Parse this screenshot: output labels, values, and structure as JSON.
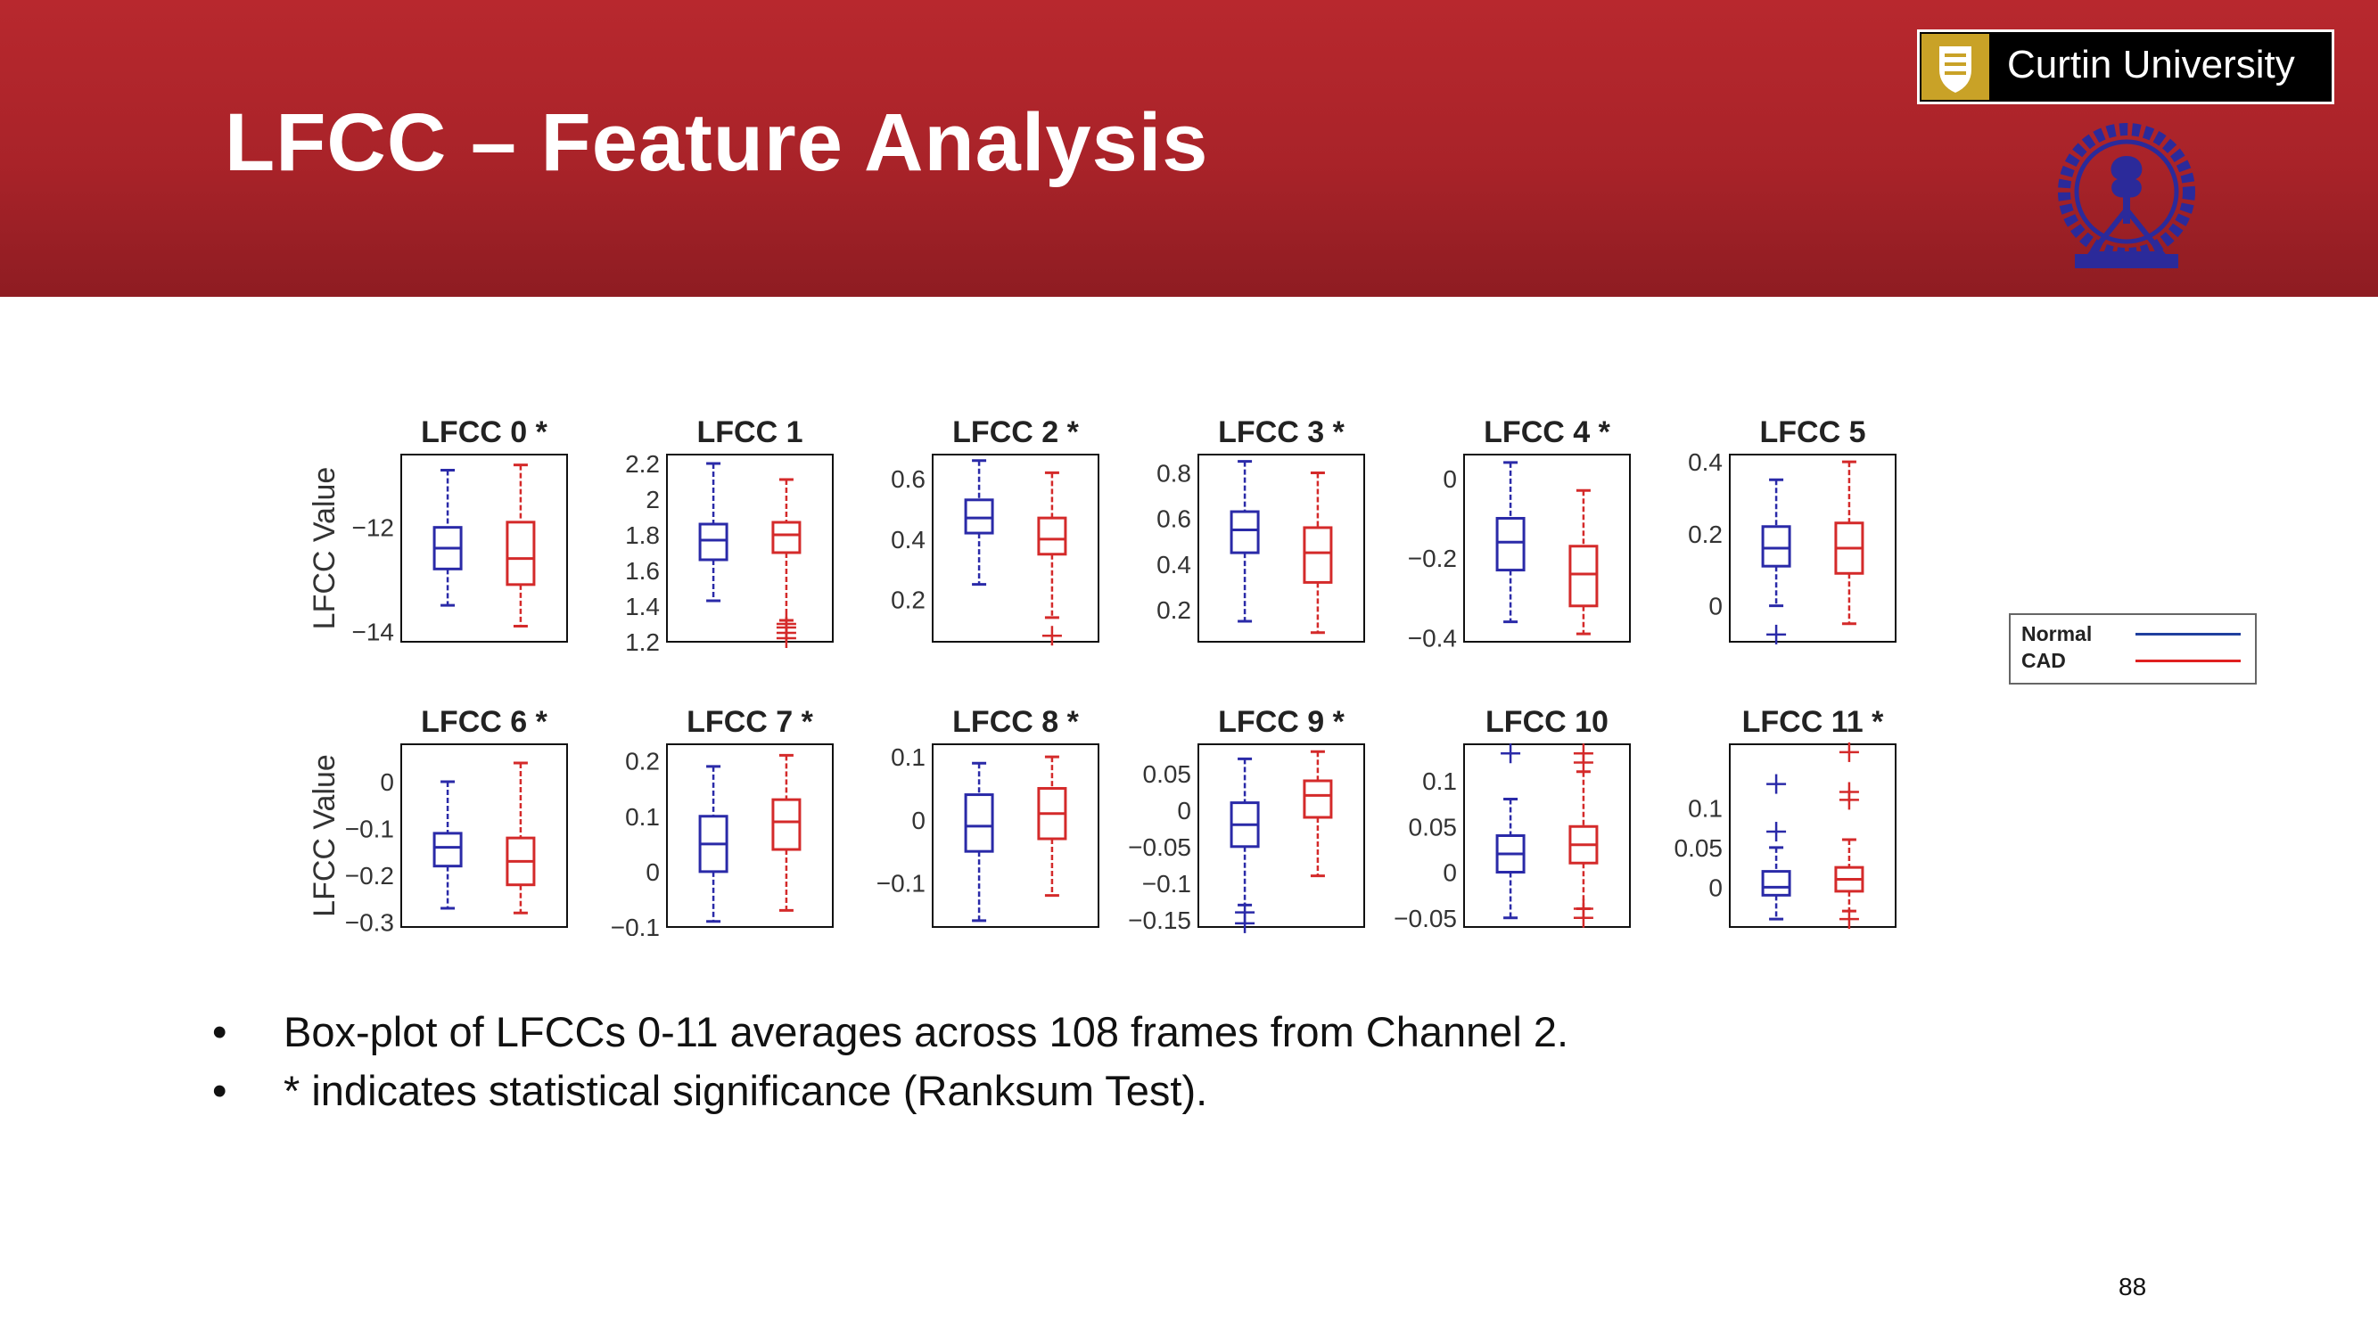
{
  "slide": {
    "title": "LFCC – Feature Analysis",
    "logo_text": "Curtin University",
    "page_number": "88",
    "bullets": [
      "Box-plot of LFCCs 0-11 averages across 108 frames from Channel 2.",
      "* indicates statistical significance (Ranksum Test)."
    ]
  },
  "legend": {
    "items": [
      {
        "label": "Normal",
        "color": "#1f3f9e"
      },
      {
        "label": "CAD",
        "color": "#e02020"
      }
    ]
  },
  "chart_data": {
    "type": "boxplot",
    "ylabel": "LFCC Value",
    "series_colors": {
      "Normal": "#2a2aa8",
      "CAD": "#d42a2a"
    },
    "panels": [
      {
        "title": "LFCC 0 *",
        "ylim": [
          -14.2,
          -10.6
        ],
        "yticks": [
          -14,
          -12
        ],
        "Normal": {
          "min": -13.5,
          "q1": -12.8,
          "median": -12.4,
          "q3": -12.0,
          "max": -10.9
        },
        "CAD": {
          "min": -13.9,
          "q1": -13.1,
          "median": -12.6,
          "q3": -11.9,
          "max": -10.8
        },
        "outliers": {
          "Normal": [],
          "CAD": []
        }
      },
      {
        "title": "LFCC 1",
        "ylim": [
          1.2,
          2.25
        ],
        "yticks": [
          1.2,
          1.4,
          1.6,
          1.8,
          2,
          2.2
        ],
        "Normal": {
          "min": 1.43,
          "q1": 1.66,
          "median": 1.77,
          "q3": 1.86,
          "max": 2.2
        },
        "CAD": {
          "min": 1.32,
          "q1": 1.7,
          "median": 1.8,
          "q3": 1.87,
          "max": 2.11
        },
        "outliers": {
          "Normal": [],
          "CAD": [
            1.22,
            1.25,
            1.28,
            1.3
          ]
        }
      },
      {
        "title": "LFCC 2 *",
        "ylim": [
          0.06,
          0.68
        ],
        "yticks": [
          0.2,
          0.4,
          0.6
        ],
        "Normal": {
          "min": 0.25,
          "q1": 0.42,
          "median": 0.47,
          "q3": 0.53,
          "max": 0.66
        },
        "CAD": {
          "min": 0.14,
          "q1": 0.35,
          "median": 0.4,
          "q3": 0.47,
          "max": 0.62
        },
        "outliers": {
          "Normal": [],
          "CAD": [
            0.08
          ]
        }
      },
      {
        "title": "LFCC 3 *",
        "ylim": [
          0.06,
          0.88
        ],
        "yticks": [
          0.2,
          0.4,
          0.6,
          0.8
        ],
        "Normal": {
          "min": 0.15,
          "q1": 0.45,
          "median": 0.55,
          "q3": 0.63,
          "max": 0.85
        },
        "CAD": {
          "min": 0.1,
          "q1": 0.32,
          "median": 0.45,
          "q3": 0.56,
          "max": 0.8
        },
        "outliers": {
          "Normal": [],
          "CAD": []
        }
      },
      {
        "title": "LFCC 4 *",
        "ylim": [
          -0.41,
          0.06
        ],
        "yticks": [
          -0.4,
          -0.2,
          0
        ],
        "Normal": {
          "min": -0.36,
          "q1": -0.23,
          "median": -0.16,
          "q3": -0.1,
          "max": 0.04
        },
        "CAD": {
          "min": -0.39,
          "q1": -0.32,
          "median": -0.24,
          "q3": -0.17,
          "max": -0.03
        },
        "outliers": {
          "Normal": [],
          "CAD": []
        }
      },
      {
        "title": "LFCC 5",
        "ylim": [
          -0.1,
          0.42
        ],
        "yticks": [
          0,
          0.2,
          0.4
        ],
        "Normal": {
          "min": 0.0,
          "q1": 0.11,
          "median": 0.16,
          "q3": 0.22,
          "max": 0.35
        },
        "CAD": {
          "min": -0.05,
          "q1": 0.09,
          "median": 0.16,
          "q3": 0.23,
          "max": 0.4
        },
        "outliers": {
          "Normal": [
            -0.08
          ],
          "CAD": []
        }
      },
      {
        "title": "LFCC 6 *",
        "ylim": [
          -0.31,
          0.08
        ],
        "yticks": [
          -0.3,
          -0.2,
          -0.1,
          0
        ],
        "Normal": {
          "min": -0.27,
          "q1": -0.18,
          "median": -0.14,
          "q3": -0.11,
          "max": 0.0
        },
        "CAD": {
          "min": -0.28,
          "q1": -0.22,
          "median": -0.17,
          "q3": -0.12,
          "max": 0.04
        },
        "outliers": {
          "Normal": [],
          "CAD": []
        }
      },
      {
        "title": "LFCC 7 *",
        "ylim": [
          -0.1,
          0.23
        ],
        "yticks": [
          -0.1,
          0,
          0.1,
          0.2
        ],
        "Normal": {
          "min": -0.09,
          "q1": 0.0,
          "median": 0.05,
          "q3": 0.1,
          "max": 0.19
        },
        "CAD": {
          "min": -0.07,
          "q1": 0.04,
          "median": 0.09,
          "q3": 0.13,
          "max": 0.21
        },
        "outliers": {
          "Normal": [],
          "CAD": []
        }
      },
      {
        "title": "LFCC 8 *",
        "ylim": [
          -0.17,
          0.12
        ],
        "yticks": [
          -0.1,
          0,
          0.1
        ],
        "Normal": {
          "min": -0.16,
          "q1": -0.05,
          "median": -0.01,
          "q3": 0.04,
          "max": 0.09
        },
        "CAD": {
          "min": -0.12,
          "q1": -0.03,
          "median": 0.01,
          "q3": 0.05,
          "max": 0.1
        },
        "outliers": {
          "Normal": [],
          "CAD": []
        }
      },
      {
        "title": "LFCC 9 *",
        "ylim": [
          -0.16,
          0.09
        ],
        "yticks": [
          -0.15,
          -0.1,
          -0.05,
          0,
          0.05
        ],
        "Normal": {
          "min": -0.13,
          "q1": -0.05,
          "median": -0.02,
          "q3": 0.01,
          "max": 0.07
        },
        "CAD": {
          "min": -0.09,
          "q1": -0.01,
          "median": 0.02,
          "q3": 0.04,
          "max": 0.08
        },
        "outliers": {
          "Normal": [
            -0.14,
            -0.155
          ],
          "CAD": []
        }
      },
      {
        "title": "LFCC 10",
        "ylim": [
          -0.06,
          0.14
        ],
        "yticks": [
          -0.05,
          0,
          0.05,
          0.1
        ],
        "Normal": {
          "min": -0.05,
          "q1": 0.0,
          "median": 0.02,
          "q3": 0.04,
          "max": 0.08
        },
        "CAD": {
          "min": -0.04,
          "q1": 0.01,
          "median": 0.03,
          "q3": 0.05,
          "max": 0.11
        },
        "outliers": {
          "Normal": [
            0.13
          ],
          "CAD": [
            0.12,
            0.13,
            -0.04,
            -0.05
          ]
        }
      },
      {
        "title": "LFCC 11 *",
        "ylim": [
          -0.05,
          0.18
        ],
        "yticks": [
          0,
          0.05,
          0.1
        ],
        "Normal": {
          "min": -0.04,
          "q1": -0.01,
          "median": 0.0,
          "q3": 0.02,
          "max": 0.05
        },
        "CAD": {
          "min": -0.03,
          "q1": -0.005,
          "median": 0.01,
          "q3": 0.025,
          "max": 0.06
        },
        "outliers": {
          "Normal": [
            0.13,
            0.07
          ],
          "CAD": [
            0.17,
            0.12,
            0.11,
            -0.04
          ]
        }
      }
    ]
  }
}
